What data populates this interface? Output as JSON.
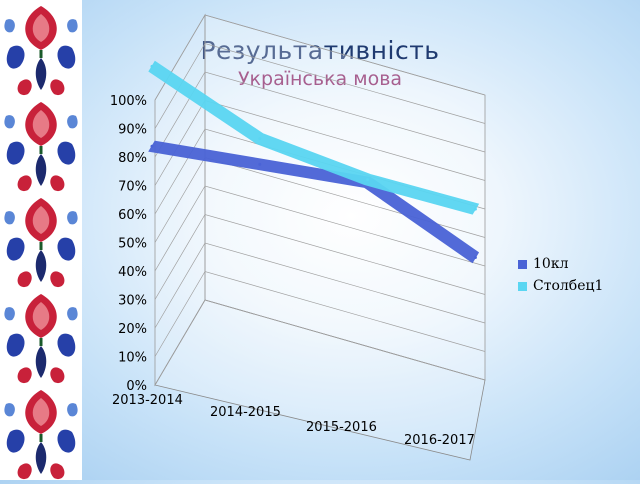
{
  "slide": {
    "title": "Результативність",
    "subtitle": "Українська мова"
  },
  "chart_data": {
    "type": "line",
    "categories": [
      "2013-2014",
      "2014-2015",
      "2015-2016",
      "2016-2017"
    ],
    "series": [
      {
        "name": "10кл",
        "values": [
          0.68,
          0.71,
          0.74,
          0.57
        ],
        "color": "#4a63d6"
      },
      {
        "name": "Столбец1",
        "values": [
          0.96,
          0.8,
          0.75,
          0.74
        ],
        "color": "#5ad6f2"
      }
    ],
    "yticks": [
      "0%",
      "10%",
      "20%",
      "30%",
      "40%",
      "50%",
      "60%",
      "70%",
      "80%",
      "90%",
      "100%"
    ],
    "ylim": [
      0,
      1
    ],
    "grid": true,
    "legend": "right",
    "style": "3d"
  },
  "decor": {
    "ornament": "folk-embroidery-border"
  }
}
